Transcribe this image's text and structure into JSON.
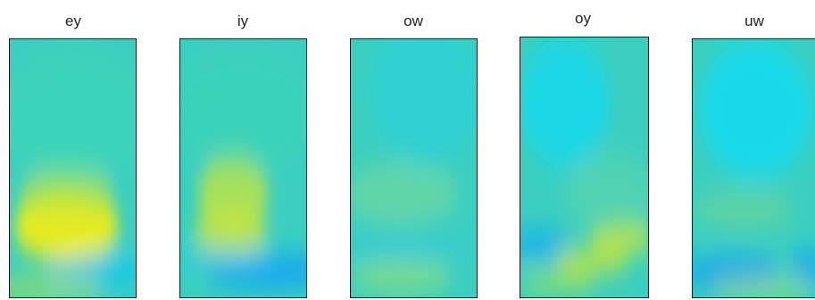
{
  "chart_data": [
    {
      "type": "heatmap",
      "title": "ey",
      "colormap": "parula",
      "blobs": [
        {
          "color": "#f4ee10",
          "x": 0.45,
          "y": 0.73,
          "rx": 0.42,
          "ry": 0.13,
          "strength": 0.95
        },
        {
          "color": "#cfe832",
          "x": 0.45,
          "y": 0.62,
          "rx": 0.38,
          "ry": 0.12,
          "strength": 0.6
        },
        {
          "color": "#3ddcb0",
          "x": 0.5,
          "y": 0.3,
          "rx": 0.6,
          "ry": 0.25,
          "strength": 0.35
        },
        {
          "color": "#15c6ee",
          "x": 0.75,
          "y": 0.9,
          "rx": 0.45,
          "ry": 0.055,
          "strength": 0.9
        },
        {
          "color": "#c9e432",
          "x": 0.3,
          "y": 0.97,
          "rx": 0.45,
          "ry": 0.05,
          "strength": 0.55
        }
      ]
    },
    {
      "type": "heatmap",
      "title": "iy",
      "colormap": "parula",
      "blobs": [
        {
          "color": "#c9e63a",
          "x": 0.42,
          "y": 0.6,
          "rx": 0.28,
          "ry": 0.15,
          "strength": 0.75
        },
        {
          "color": "#dcea2c",
          "x": 0.4,
          "y": 0.75,
          "rx": 0.3,
          "ry": 0.08,
          "strength": 0.7
        },
        {
          "color": "#3ddcb0",
          "x": 0.5,
          "y": 0.28,
          "rx": 0.6,
          "ry": 0.22,
          "strength": 0.3
        },
        {
          "color": "#14a8f0",
          "x": 0.7,
          "y": 0.9,
          "rx": 0.5,
          "ry": 0.07,
          "strength": 1.0
        },
        {
          "color": "#30c8e8",
          "x": 0.3,
          "y": 0.86,
          "rx": 0.5,
          "ry": 0.04,
          "strength": 0.6
        }
      ]
    },
    {
      "type": "heatmap",
      "title": "ow",
      "colormap": "parula",
      "blobs": [
        {
          "color": "#7ad89a",
          "x": 0.4,
          "y": 0.6,
          "rx": 0.45,
          "ry": 0.12,
          "strength": 0.6
        },
        {
          "color": "#1fd2e0",
          "x": 0.6,
          "y": 0.2,
          "rx": 0.45,
          "ry": 0.3,
          "strength": 0.5
        },
        {
          "color": "#9ee070",
          "x": 0.4,
          "y": 0.92,
          "rx": 0.4,
          "ry": 0.05,
          "strength": 0.75
        },
        {
          "color": "#2dc6ea",
          "x": 0.5,
          "y": 0.81,
          "rx": 0.55,
          "ry": 0.04,
          "strength": 0.55
        }
      ]
    },
    {
      "type": "heatmap",
      "title": "oy",
      "colormap": "parula",
      "blobs": [
        {
          "color": "#0ed8f2",
          "x": 0.35,
          "y": 0.25,
          "rx": 0.35,
          "ry": 0.25,
          "strength": 0.75
        },
        {
          "color": "#c8e638",
          "x": 0.8,
          "y": 0.77,
          "rx": 0.25,
          "ry": 0.06,
          "strength": 0.85
        },
        {
          "color": "#c8e638",
          "x": 0.55,
          "y": 0.86,
          "rx": 0.3,
          "ry": 0.05,
          "strength": 0.8
        },
        {
          "color": "#b0e248",
          "x": 0.3,
          "y": 0.94,
          "rx": 0.3,
          "ry": 0.04,
          "strength": 0.7
        },
        {
          "color": "#12aef0",
          "x": 0.15,
          "y": 0.8,
          "rx": 0.25,
          "ry": 0.05,
          "strength": 0.9
        },
        {
          "color": "#6ed8a0",
          "x": 0.7,
          "y": 0.6,
          "rx": 0.35,
          "ry": 0.15,
          "strength": 0.4
        }
      ]
    },
    {
      "type": "heatmap",
      "title": "uw",
      "colormap": "parula",
      "blobs": [
        {
          "color": "#0edcf2",
          "x": 0.5,
          "y": 0.27,
          "rx": 0.45,
          "ry": 0.27,
          "strength": 0.8
        },
        {
          "color": "#8ad880",
          "x": 0.4,
          "y": 0.66,
          "rx": 0.4,
          "ry": 0.06,
          "strength": 0.5
        },
        {
          "color": "#14a8f0",
          "x": 0.3,
          "y": 0.9,
          "rx": 0.4,
          "ry": 0.06,
          "strength": 0.95
        },
        {
          "color": "#14a8f0",
          "x": 0.92,
          "y": 0.88,
          "rx": 0.15,
          "ry": 0.06,
          "strength": 0.8
        },
        {
          "color": "#b6e24a",
          "x": 0.55,
          "y": 0.97,
          "rx": 0.4,
          "ry": 0.04,
          "strength": 0.6
        }
      ]
    }
  ],
  "colors": {
    "base": "#3ccfbf",
    "border": "#1a1a1a"
  }
}
